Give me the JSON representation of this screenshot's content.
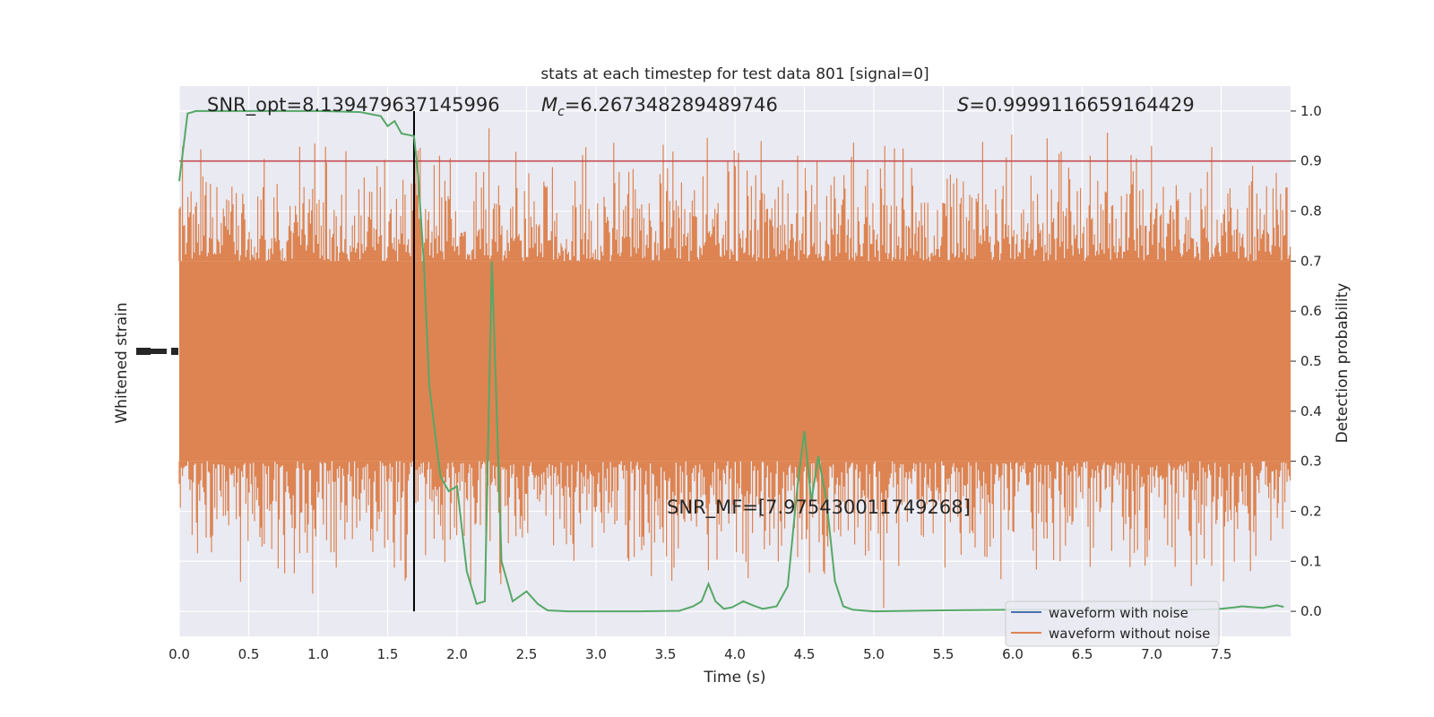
{
  "chart_data": {
    "type": "line",
    "title": "stats at each timestep for test data 801 [signal=0]",
    "xlabel": "Time (s)",
    "ylabel_left": "Whitened strain",
    "ylabel_right": "Detection probability",
    "xlim": [
      0.0,
      8.0
    ],
    "ylim_right": [
      -0.05,
      1.05
    ],
    "grid": true,
    "x_ticks": [
      "0.0",
      "0.5",
      "1.0",
      "1.5",
      "2.0",
      "2.5",
      "3.0",
      "3.5",
      "4.0",
      "4.5",
      "5.0",
      "5.5",
      "6.0",
      "6.5",
      "7.0",
      "7.5"
    ],
    "y_ticks_right": [
      "0.0",
      "0.1",
      "0.2",
      "0.3",
      "0.4",
      "0.5",
      "0.6",
      "0.7",
      "0.8",
      "0.9",
      "1.0"
    ],
    "annotations": {
      "snr_opt": "SNR_opt=8.139479637145996",
      "mc_symbol": "M",
      "mc_sub": "c",
      "mc_value": "=6.267348289489746",
      "s_symbol": "S",
      "s_value": "=0.9999116659164429",
      "snr_mf": "SNR_MF=[7.975430011749268]"
    },
    "threshold": {
      "y": 0.9,
      "color": "#c44e52"
    },
    "event_time": 1.69,
    "noise_band": {
      "low": 0.3,
      "high": 0.7
    },
    "legend": {
      "placement": "lower-right",
      "entries": [
        {
          "label": "waveform with noise",
          "color": "#4c72b0"
        },
        {
          "label": "waveform without noise",
          "color": "#dd8452"
        }
      ]
    },
    "series": [
      {
        "color": "#55a868",
        "x": [
          0.0,
          0.06,
          0.12,
          0.2,
          0.3,
          0.5,
          0.7,
          1.0,
          1.3,
          1.45,
          1.5,
          1.55,
          1.6,
          1.69,
          1.72,
          1.76,
          1.8,
          1.88,
          1.94,
          2.0,
          2.07,
          2.14,
          2.2,
          2.25,
          2.32,
          2.4,
          2.5,
          2.58,
          2.65,
          2.8,
          3.0,
          3.3,
          3.6,
          3.7,
          3.76,
          3.81,
          3.86,
          3.92,
          3.98,
          4.06,
          4.13,
          4.2,
          4.3,
          4.38,
          4.45,
          4.5,
          4.55,
          4.6,
          4.66,
          4.72,
          4.78,
          4.85,
          5.0,
          5.5,
          6.0,
          6.5,
          7.0,
          7.3,
          7.4,
          7.5,
          7.6,
          7.65,
          7.7,
          7.8,
          7.9,
          7.95
        ],
        "y": [
          0.86,
          0.995,
          1.0,
          1.0,
          1.0,
          1.0,
          1.0,
          1.0,
          0.998,
          0.99,
          0.97,
          0.98,
          0.955,
          0.95,
          0.87,
          0.7,
          0.45,
          0.27,
          0.24,
          0.25,
          0.08,
          0.015,
          0.02,
          0.7,
          0.1,
          0.02,
          0.04,
          0.015,
          0.002,
          0.0,
          0.0,
          0.0,
          0.001,
          0.01,
          0.02,
          0.055,
          0.02,
          0.005,
          0.008,
          0.02,
          0.012,
          0.005,
          0.01,
          0.05,
          0.25,
          0.36,
          0.22,
          0.31,
          0.22,
          0.06,
          0.01,
          0.003,
          0.0,
          0.002,
          0.003,
          0.003,
          0.003,
          0.003,
          0.004,
          0.005,
          0.008,
          0.01,
          0.009,
          0.007,
          0.012,
          0.009
        ]
      }
    ]
  }
}
